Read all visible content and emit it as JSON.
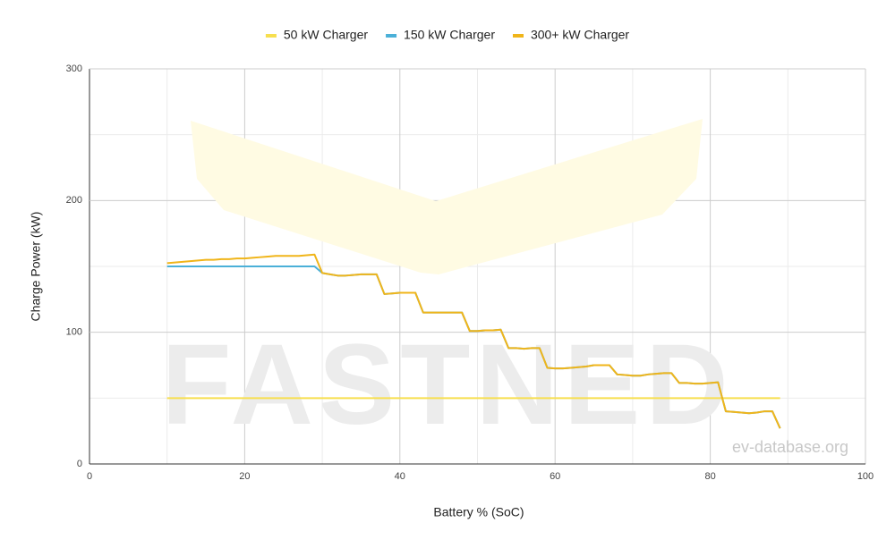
{
  "chart_data": {
    "type": "line",
    "x_title": "Battery % (SoC)",
    "y_title": "Charge Power (kW)",
    "watermark": "FASTNED",
    "source": "ev-database.org",
    "x": [
      10,
      11,
      12,
      13,
      14,
      15,
      16,
      17,
      18,
      19,
      20,
      21,
      22,
      23,
      24,
      25,
      26,
      27,
      28,
      29,
      30,
      31,
      32,
      33,
      34,
      35,
      36,
      37,
      38,
      39,
      40,
      41,
      42,
      43,
      44,
      45,
      46,
      47,
      48,
      49,
      50,
      51,
      52,
      53,
      54,
      55,
      56,
      57,
      58,
      59,
      60,
      61,
      62,
      63,
      64,
      65,
      66,
      67,
      68,
      69,
      70,
      71,
      72,
      73,
      74,
      75,
      76,
      77,
      78,
      79,
      80,
      81,
      82,
      83,
      84,
      85,
      86,
      87,
      88,
      89
    ],
    "series": [
      {
        "name": "50 kW Charger",
        "color": "#f7df4f",
        "values": [
          50,
          50,
          50,
          50,
          50,
          50,
          50,
          50,
          50,
          50,
          50,
          50,
          50,
          50,
          50,
          50,
          50,
          50,
          50,
          50,
          50,
          50,
          50,
          50,
          50,
          50,
          50,
          50,
          50,
          50,
          50,
          50,
          50,
          50,
          50,
          50,
          50,
          50,
          50,
          50,
          50,
          50,
          50,
          50,
          50,
          50,
          50,
          50,
          50,
          50,
          50,
          50,
          50,
          50,
          50,
          50,
          50,
          50,
          50,
          50,
          50,
          50,
          50,
          50,
          50,
          50,
          50,
          50,
          50,
          50,
          50,
          50,
          50,
          50,
          50,
          50,
          50,
          50,
          50,
          50
        ]
      },
      {
        "name": "150 kW Charger",
        "color": "#4bb0d8",
        "values": [
          150,
          150,
          150,
          150,
          150,
          150,
          150,
          150,
          150,
          150,
          150,
          150,
          150,
          150,
          150,
          150,
          150,
          150,
          150,
          150,
          145,
          144,
          143,
          143,
          143.5,
          144,
          144,
          144,
          129,
          129.5,
          130,
          130,
          130,
          115,
          115,
          115,
          115,
          115,
          115,
          101,
          101,
          101.5,
          101.5,
          102,
          88,
          88,
          87.5,
          88,
          88,
          73,
          72.5,
          72.5,
          73,
          73.5,
          74,
          75,
          75,
          75,
          68,
          67.5,
          67,
          67,
          68,
          68.5,
          69,
          69,
          61.5,
          61.5,
          61,
          61,
          61.5,
          62,
          40,
          39.5,
          39,
          38.5,
          39,
          40,
          40,
          27
        ]
      },
      {
        "name": "300+ kW Charger",
        "color": "#f0b51a",
        "values": [
          152.5,
          153,
          153.5,
          154,
          154.5,
          155,
          155,
          155.5,
          155.5,
          156,
          156,
          156.5,
          157,
          157.5,
          158,
          158,
          158,
          158,
          158.5,
          159,
          145,
          144,
          143,
          143,
          143.5,
          144,
          144,
          144,
          129,
          129.5,
          130,
          130,
          130,
          115,
          115,
          115,
          115,
          115,
          115,
          101,
          101,
          101.5,
          101.5,
          102,
          88,
          88,
          87.5,
          88,
          88,
          73,
          72.5,
          72.5,
          73,
          73.5,
          74,
          75,
          75,
          75,
          68,
          67.5,
          67,
          67,
          68,
          68.5,
          69,
          69,
          61.5,
          61.5,
          61,
          61,
          61.5,
          62,
          40,
          39.5,
          39,
          38.5,
          39,
          40,
          40,
          27
        ]
      }
    ],
    "xlim": [
      0,
      100
    ],
    "xticks": [
      0,
      20,
      40,
      60,
      80,
      100
    ],
    "x_minor_ticks": [
      10,
      30,
      50,
      70,
      90
    ],
    "ylim": [
      0,
      300
    ],
    "yticks": [
      0,
      100,
      200,
      300
    ],
    "y_minor_ticks": [
      50,
      150,
      250
    ],
    "grid": true,
    "legend": "top"
  }
}
